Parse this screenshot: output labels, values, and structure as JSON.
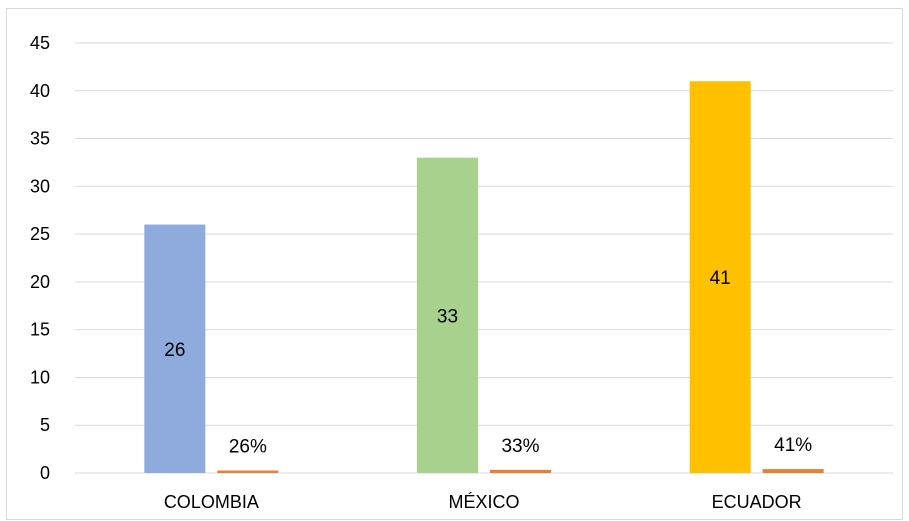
{
  "chart_data": {
    "type": "bar",
    "categories": [
      "COLOMBIA",
      "MÉXICO",
      "ECUADOR"
    ],
    "series": [
      {
        "values": [
          26,
          33,
          41
        ],
        "data_labels": [
          "26",
          "33",
          "41"
        ],
        "colors": [
          "#8FAADC",
          "#A9D18E",
          "#FFC000"
        ]
      },
      {
        "values": [
          0.26,
          0.33,
          0.41
        ],
        "data_labels": [
          "26%",
          "33%",
          "41%"
        ],
        "color": "#ED7D31"
      }
    ],
    "ylim": [
      0,
      45
    ],
    "yticks": [
      "0",
      "5",
      "10",
      "15",
      "20",
      "25",
      "30",
      "35",
      "40",
      "45"
    ],
    "grid": true,
    "gridline_color": "#d9d9d9",
    "legend": "none"
  }
}
